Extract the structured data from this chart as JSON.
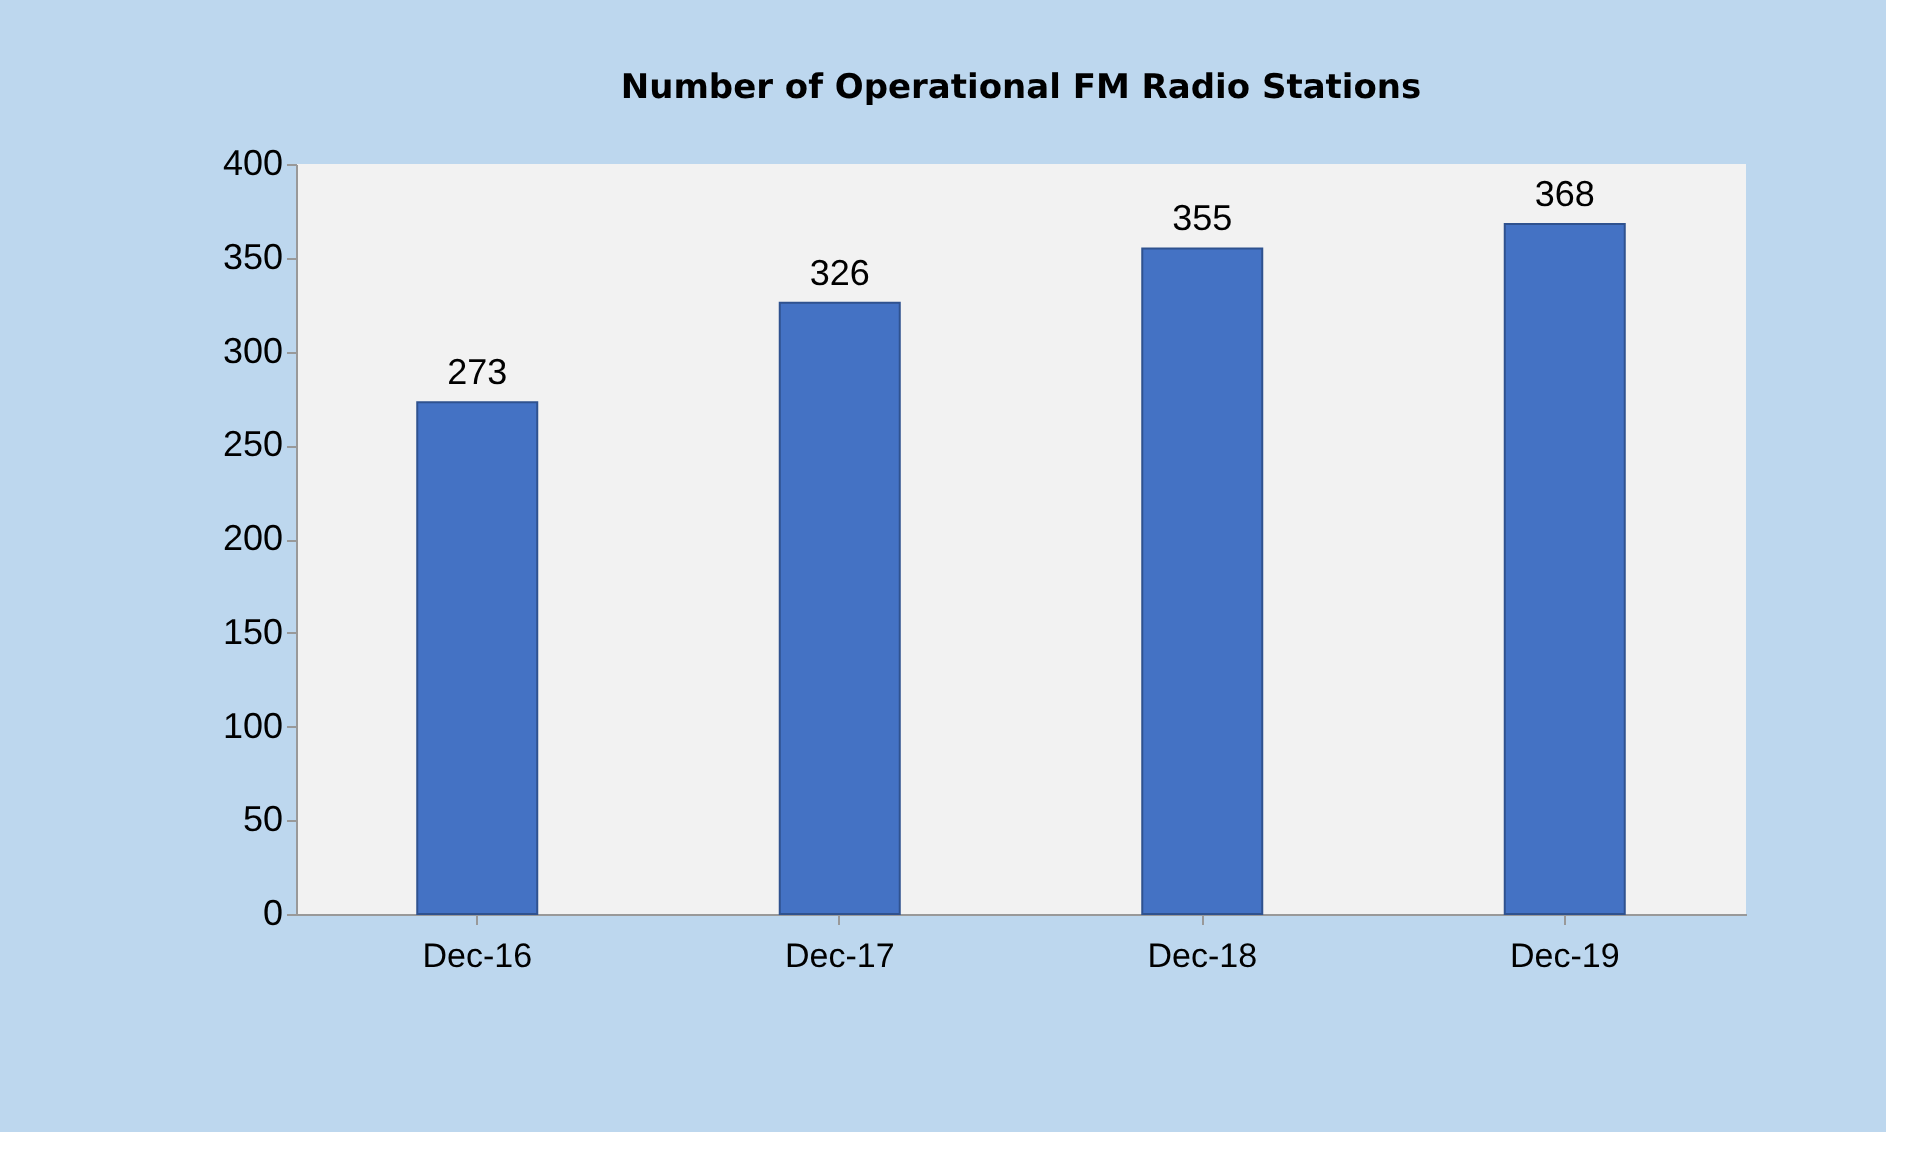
{
  "chart_data": {
    "type": "bar",
    "title": "Number of Operational FM Radio  Stations",
    "categories": [
      "Dec-16",
      "Dec-17",
      "Dec-18",
      "Dec-19"
    ],
    "values": [
      273,
      326,
      355,
      368
    ],
    "color": "#4472c4",
    "ylim": [
      0,
      400
    ],
    "yticks": [
      0,
      50,
      100,
      150,
      200,
      250,
      300,
      350,
      400
    ],
    "grid": false,
    "data_labels": true
  }
}
